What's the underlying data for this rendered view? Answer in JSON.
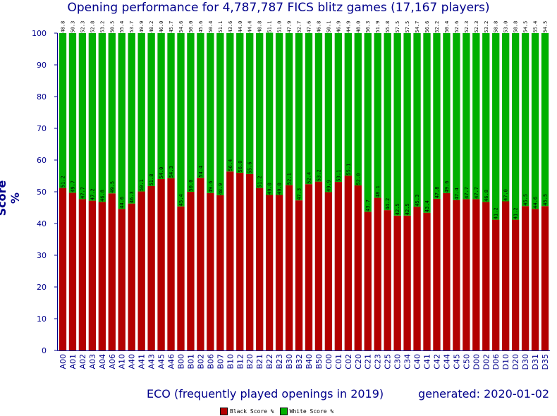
{
  "title": "Opening performance for 4,787,787 FICS blitz games (17,167 players)",
  "generated": "generated: 2020-01-02",
  "colors": {
    "black": "#b30000",
    "white": "#00b000",
    "axis": "#00008b"
  },
  "chart_data": {
    "type": "bar",
    "stacked": true,
    "xlabel": "ECO (frequently played openings in 2019)",
    "ylabel": "Score %",
    "ylim": [
      0,
      100
    ],
    "yticks": [
      0,
      10,
      20,
      30,
      40,
      50,
      60,
      70,
      80,
      90,
      100
    ],
    "legend_position": "bottom",
    "categories": [
      "A00",
      "A01",
      "A02",
      "A03",
      "A04",
      "A06",
      "A10",
      "A40",
      "A41",
      "A43",
      "A45",
      "A46",
      "B00",
      "B01",
      "B02",
      "B06",
      "B07",
      "B10",
      "B12",
      "B20",
      "B21",
      "B22",
      "B23",
      "B30",
      "B32",
      "B40",
      "B50",
      "C00",
      "C01",
      "C02",
      "C20",
      "C21",
      "C23",
      "C25",
      "C30",
      "C34",
      "C40",
      "C41",
      "C42",
      "C44",
      "C45",
      "C50",
      "D00",
      "D02",
      "D06",
      "D10",
      "D20",
      "D30",
      "D31",
      "D35"
    ],
    "series": [
      {
        "name": "Black Score %",
        "color": "#b30000",
        "values": [
          51.2,
          49.7,
          47.7,
          47.2,
          46.8,
          49.5,
          44.6,
          46.3,
          50.1,
          51.8,
          54.0,
          54.3,
          45.4,
          50.0,
          54.4,
          49.6,
          48.9,
          56.4,
          56.0,
          55.6,
          51.2,
          49.0,
          49.0,
          52.1,
          47.3,
          52.4,
          53.2,
          49.9,
          53.1,
          55.1,
          52.0,
          43.7,
          48.1,
          44.2,
          42.5,
          42.5,
          45.3,
          43.4,
          47.8,
          49.6,
          47.4,
          47.7,
          47.7,
          46.8,
          41.2,
          47.0,
          41.2,
          45.5,
          44.6,
          45.5
        ]
      },
      {
        "name": "White Score %",
        "color": "#00b000",
        "values": [
          48.8,
          50.3,
          52.3,
          52.8,
          53.2,
          50.5,
          55.4,
          53.7,
          49.9,
          48.2,
          46.0,
          45.7,
          54.6,
          50.0,
          45.6,
          50.4,
          51.1,
          43.6,
          44.0,
          44.4,
          48.8,
          51.1,
          51.0,
          47.9,
          52.7,
          47.6,
          46.8,
          50.1,
          46.9,
          44.9,
          48.0,
          56.3,
          51.9,
          55.8,
          57.5,
          57.5,
          54.7,
          56.6,
          52.2,
          50.4,
          52.6,
          52.3,
          52.3,
          53.2,
          58.8,
          53.0,
          58.8,
          54.5,
          55.4,
          54.5
        ]
      }
    ]
  }
}
